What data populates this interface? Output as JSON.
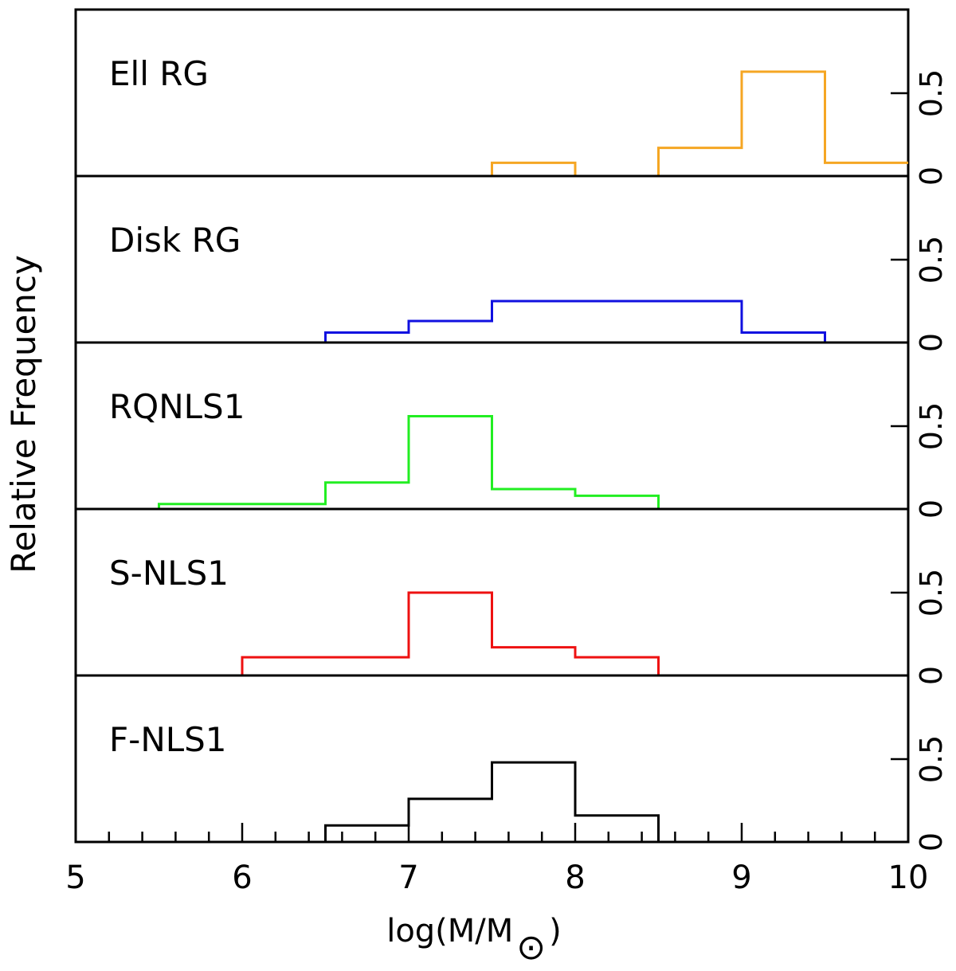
{
  "chart_data": {
    "type": "histogram",
    "layout": "stacked-panels",
    "xlabel": "log(M/M",
    "xlabel_symbol": "⊙",
    "ylabel": "Relative Frequency",
    "xlim": [
      5,
      10
    ],
    "ylim": [
      0,
      1
    ],
    "x_major_ticks": [
      5,
      6,
      7,
      8,
      9,
      10
    ],
    "x_minor_step": 0.2,
    "y_ticks": [
      0,
      0.5
    ],
    "y_tick_labels": [
      "0",
      "0.5"
    ],
    "y_axis_side": "right",
    "bin_width": 0.5,
    "panels": [
      {
        "name": "Ell RG",
        "color": "#f5a623",
        "bins": [
          {
            "x0": 7.5,
            "x1": 8.0,
            "y": 0.08
          },
          {
            "x0": 8.0,
            "x1": 8.5,
            "y": 0.0
          },
          {
            "x0": 8.5,
            "x1": 9.0,
            "y": 0.17
          },
          {
            "x0": 9.0,
            "x1": 9.5,
            "y": 0.63
          },
          {
            "x0": 9.5,
            "x1": 10.0,
            "y": 0.08
          }
        ]
      },
      {
        "name": "Disk RG",
        "color": "#1010e0",
        "bins": [
          {
            "x0": 6.5,
            "x1": 7.0,
            "y": 0.06
          },
          {
            "x0": 7.0,
            "x1": 7.5,
            "y": 0.13
          },
          {
            "x0": 7.5,
            "x1": 8.0,
            "y": 0.25
          },
          {
            "x0": 8.0,
            "x1": 8.5,
            "y": 0.25
          },
          {
            "x0": 8.5,
            "x1": 9.0,
            "y": 0.25
          },
          {
            "x0": 9.0,
            "x1": 9.5,
            "y": 0.06
          }
        ]
      },
      {
        "name": "RQNLS1",
        "color": "#22ee22",
        "bins": [
          {
            "x0": 5.5,
            "x1": 6.0,
            "y": 0.03
          },
          {
            "x0": 6.0,
            "x1": 6.5,
            "y": 0.03
          },
          {
            "x0": 6.5,
            "x1": 7.0,
            "y": 0.16
          },
          {
            "x0": 7.0,
            "x1": 7.5,
            "y": 0.56
          },
          {
            "x0": 7.5,
            "x1": 8.0,
            "y": 0.12
          },
          {
            "x0": 8.0,
            "x1": 8.5,
            "y": 0.08
          }
        ]
      },
      {
        "name": "S-NLS1",
        "color": "#ee1111",
        "bins": [
          {
            "x0": 6.0,
            "x1": 6.5,
            "y": 0.11
          },
          {
            "x0": 6.5,
            "x1": 7.0,
            "y": 0.11
          },
          {
            "x0": 7.0,
            "x1": 7.5,
            "y": 0.5
          },
          {
            "x0": 7.5,
            "x1": 8.0,
            "y": 0.17
          },
          {
            "x0": 8.0,
            "x1": 8.5,
            "y": 0.11
          }
        ]
      },
      {
        "name": "F-NLS1",
        "color": "#000000",
        "bins": [
          {
            "x0": 6.5,
            "x1": 7.0,
            "y": 0.1
          },
          {
            "x0": 7.0,
            "x1": 7.5,
            "y": 0.26
          },
          {
            "x0": 7.5,
            "x1": 8.0,
            "y": 0.48
          },
          {
            "x0": 8.0,
            "x1": 8.5,
            "y": 0.16
          }
        ]
      }
    ]
  }
}
